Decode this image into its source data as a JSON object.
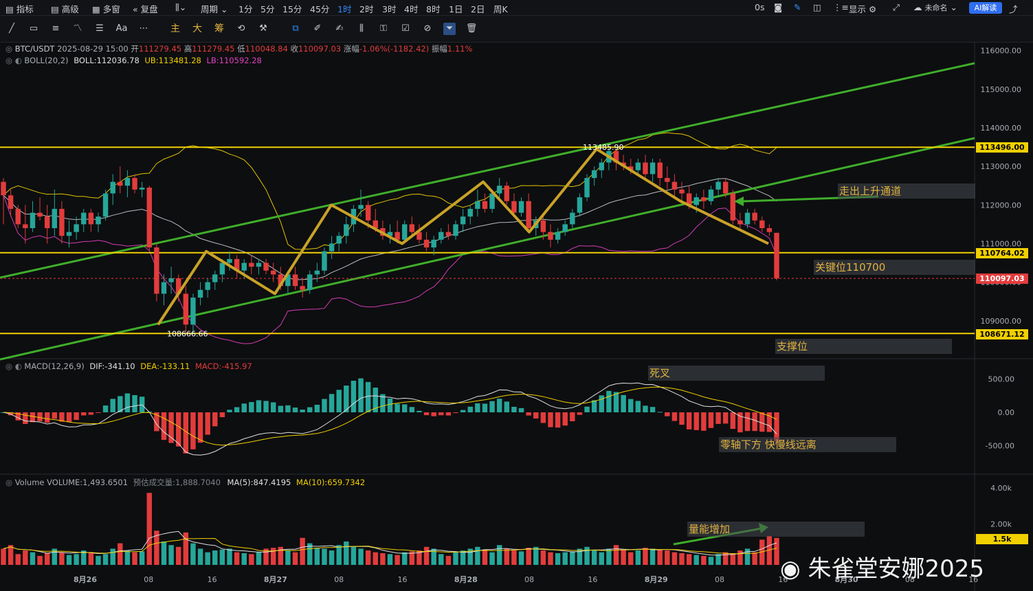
{
  "topbar": {
    "items": [
      "指标",
      "高级",
      "多窗",
      "复盘",
      "周期",
      "1分",
      "5分",
      "15分",
      "45分",
      "1时",
      "2时",
      "3时",
      "4时",
      "8时",
      "1日",
      "2日",
      "周K"
    ],
    "active": "1时",
    "right": {
      "timer": "0s",
      "show": "显示",
      "user": "未命名",
      "ai": "AI解读"
    }
  },
  "toolbar": {
    "gold_labels": [
      "主",
      "大",
      "筹"
    ]
  },
  "header": {
    "symbol": "BTC/USDT",
    "datetime": "2025-08-29 15:00",
    "open_label": "开",
    "open": "111279.45",
    "high_label": "高",
    "high": "111279.45",
    "low_label": "低",
    "low": "110048.84",
    "close_label": "收",
    "close": "110097.03",
    "change_label": "涨幅",
    "change": "-1.06%(-1182.42)",
    "amp_label": "振幅",
    "amp": "1.11%"
  },
  "boll": {
    "name": "BOLL(20,2)",
    "boll": "BOLL:112036.78",
    "ub": "UB:113481.28",
    "lb": "LB:110592.28"
  },
  "macd": {
    "name": "MACD(12,26,9)",
    "dif": "DIF:-341.10",
    "dea": "DEA:-133.11",
    "macd": "MACD:-415.97"
  },
  "volume": {
    "name": "Volume",
    "vol": "VOLUME:1,493.6501",
    "est": "预估成交量:1,888.7040",
    "ma5": "MA(5):847.4195",
    "ma10": "MA(10):659.7342"
  },
  "price_tags": [
    {
      "value": "113496.00",
      "color": "#f0d000",
      "text_color": "#000000"
    },
    {
      "value": "110764.02",
      "color": "#f0d000",
      "text_color": "#000000"
    },
    {
      "value": "110097.03",
      "color": "#e23c3c",
      "text_color": "#ffffff"
    },
    {
      "value": "108671.12",
      "color": "#f0d000",
      "text_color": "#000000"
    }
  ],
  "vol_tag": "1.5k",
  "annotations": {
    "channel_exit": "走出上升通道",
    "key_level": "关键位110700",
    "support": "支撑位",
    "death_cross": "死叉",
    "below_zero": "零轴下方 快慢线远离",
    "volume_up": "量能增加"
  },
  "watermark": "朱雀堂安娜2025",
  "chart_data": {
    "type": "candlestick",
    "symbol": "BTC/USDT",
    "interval": "1时",
    "price_axis": {
      "ticks": [
        109000,
        110000,
        111000,
        112000,
        113000,
        114000,
        115000,
        116000
      ],
      "labels": [
        "109000.00",
        "110000.00",
        "111000.00",
        "112000.00",
        "113000.00",
        "114000.00",
        "115000.00",
        "116000.00"
      ]
    },
    "macd_axis": {
      "ticks": [
        500,
        0,
        -500
      ],
      "labels": [
        "500.00",
        "0.00",
        "-500.00"
      ]
    },
    "volume_axis": {
      "ticks": [
        4000,
        2000
      ],
      "labels": [
        "4.00k",
        "2.00k"
      ]
    },
    "x_labels": [
      "8月26",
      "08",
      "16",
      "8月27",
      "08",
      "16",
      "8月28",
      "08",
      "16",
      "8月29",
      "08",
      "16",
      "8月30",
      "08",
      "16"
    ],
    "horizontal_levels": [
      113496.0,
      110764.02,
      108671.12
    ],
    "last_price": 110097.03,
    "marked_high": {
      "label": "113485.90",
      "value": 113485.9
    },
    "marked_low": {
      "label": "108666.66",
      "value": 108666.66
    },
    "zigzag_pivots": [
      108900,
      110800,
      109700,
      112000,
      111000,
      112600,
      111300,
      113450,
      112100,
      111000
    ],
    "candles": [
      [
        112600,
        112700,
        111500,
        112250
      ],
      [
        112250,
        112400,
        111700,
        111900
      ],
      [
        111900,
        112000,
        111400,
        111500
      ],
      [
        111500,
        112000,
        111000,
        111400
      ],
      [
        111400,
        112100,
        111300,
        111800
      ],
      [
        111800,
        112200,
        111600,
        111700
      ],
      [
        111700,
        112000,
        111000,
        111400
      ],
      [
        111400,
        112400,
        111200,
        111900
      ],
      [
        111900,
        112100,
        111000,
        111200
      ],
      [
        111200,
        111600,
        110900,
        111300
      ],
      [
        111300,
        111700,
        111100,
        111500
      ],
      [
        111500,
        111900,
        111300,
        111800
      ],
      [
        111800,
        111900,
        111300,
        111500
      ],
      [
        111500,
        111800,
        111300,
        111700
      ],
      [
        111700,
        112400,
        111600,
        112300
      ],
      [
        112300,
        112800,
        112000,
        112600
      ],
      [
        112600,
        113000,
        112300,
        112500
      ],
      [
        112500,
        112900,
        112200,
        112700
      ],
      [
        112700,
        112800,
        112300,
        112400
      ],
      [
        112400,
        112600,
        112200,
        112450
      ],
      [
        112450,
        112500,
        110800,
        110900
      ],
      [
        110900,
        111000,
        109500,
        109700
      ],
      [
        109700,
        110200,
        109400,
        110000
      ],
      [
        110000,
        110400,
        109700,
        110100
      ],
      [
        110100,
        110200,
        109500,
        109700
      ],
      [
        109700,
        109900,
        108700,
        108900
      ],
      [
        108900,
        109700,
        108667,
        109600
      ],
      [
        109600,
        110000,
        109400,
        109800
      ],
      [
        109800,
        110100,
        109600,
        110000
      ],
      [
        110000,
        110300,
        109800,
        110200
      ],
      [
        110200,
        110600,
        110000,
        110500
      ],
      [
        110500,
        110800,
        110300,
        110600
      ],
      [
        110600,
        110700,
        110100,
        110300
      ],
      [
        110300,
        110600,
        110100,
        110500
      ],
      [
        110500,
        110700,
        110200,
        110400
      ],
      [
        110400,
        110600,
        110200,
        110500
      ],
      [
        110500,
        110600,
        110200,
        110300
      ],
      [
        110300,
        110500,
        110000,
        110200
      ],
      [
        110200,
        110400,
        109800,
        109900
      ],
      [
        109900,
        110300,
        109700,
        110200
      ],
      [
        110200,
        110400,
        109800,
        109900
      ],
      [
        109900,
        110100,
        109600,
        109800
      ],
      [
        109800,
        110300,
        109700,
        110200
      ],
      [
        110200,
        110500,
        110000,
        110300
      ],
      [
        110300,
        110900,
        110200,
        110800
      ],
      [
        110800,
        111200,
        110600,
        111000
      ],
      [
        111000,
        111300,
        110800,
        111200
      ],
      [
        111200,
        111700,
        111000,
        111500
      ],
      [
        111500,
        112000,
        111300,
        111900
      ],
      [
        111900,
        112400,
        111700,
        112000
      ],
      [
        112000,
        112100,
        111400,
        111600
      ],
      [
        111600,
        111900,
        111300,
        111400
      ],
      [
        111400,
        111600,
        111100,
        111200
      ],
      [
        111200,
        111500,
        111000,
        111300
      ],
      [
        111300,
        111600,
        111000,
        111100
      ],
      [
        111100,
        111600,
        111000,
        111500
      ],
      [
        111500,
        111700,
        111200,
        111300
      ],
      [
        111300,
        111500,
        111000,
        111100
      ],
      [
        111100,
        111300,
        110800,
        110900
      ],
      [
        110900,
        111200,
        110700,
        111100
      ],
      [
        111100,
        111400,
        111000,
        111300
      ],
      [
        111300,
        111500,
        111100,
        111200
      ],
      [
        111200,
        111600,
        111100,
        111500
      ],
      [
        111500,
        111900,
        111300,
        111700
      ],
      [
        111700,
        112000,
        111500,
        111900
      ],
      [
        111900,
        112400,
        111700,
        112100
      ],
      [
        112100,
        112300,
        111800,
        111900
      ],
      [
        111900,
        112400,
        111800,
        112300
      ],
      [
        112300,
        112700,
        112100,
        112500
      ],
      [
        112500,
        112600,
        112000,
        112100
      ],
      [
        112100,
        112300,
        111700,
        111800
      ],
      [
        111800,
        112200,
        111700,
        112100
      ],
      [
        112100,
        112300,
        111300,
        111400
      ],
      [
        111400,
        111700,
        111200,
        111600
      ],
      [
        111600,
        111700,
        111100,
        111300
      ],
      [
        111300,
        111500,
        110900,
        111100
      ],
      [
        111100,
        111400,
        111000,
        111300
      ],
      [
        111300,
        111600,
        111200,
        111500
      ],
      [
        111500,
        111900,
        111400,
        111800
      ],
      [
        111800,
        112300,
        111700,
        112200
      ],
      [
        112200,
        112800,
        112100,
        112700
      ],
      [
        112700,
        113000,
        112500,
        112900
      ],
      [
        112900,
        113200,
        112700,
        113100
      ],
      [
        113100,
        113486,
        112900,
        113400
      ],
      [
        113400,
        113450,
        112900,
        113100
      ],
      [
        113100,
        113300,
        112900,
        113000
      ],
      [
        113000,
        113200,
        112800,
        112900
      ],
      [
        112900,
        113200,
        112800,
        113100
      ],
      [
        113100,
        113300,
        112700,
        112800
      ],
      [
        112800,
        113200,
        112600,
        113100
      ],
      [
        113100,
        113200,
        112500,
        112700
      ],
      [
        112700,
        113000,
        112400,
        112600
      ],
      [
        112600,
        112800,
        112200,
        112400
      ],
      [
        112400,
        112600,
        112100,
        112300
      ],
      [
        112300,
        112500,
        111900,
        112000
      ],
      [
        112000,
        112300,
        111800,
        112200
      ],
      [
        112200,
        112400,
        111900,
        112100
      ],
      [
        112100,
        112500,
        112000,
        112400
      ],
      [
        112400,
        112700,
        112200,
        112600
      ],
      [
        112600,
        112700,
        112200,
        112300
      ],
      [
        112300,
        112400,
        111500,
        111600
      ],
      [
        111600,
        111800,
        111400,
        111500
      ],
      [
        111500,
        111900,
        111400,
        111800
      ],
      [
        111800,
        111900,
        111500,
        111600
      ],
      [
        111600,
        111700,
        111300,
        111400
      ],
      [
        111400,
        111500,
        111200,
        111300
      ],
      [
        111279,
        111279,
        110049,
        110097
      ]
    ],
    "volume": [
      900,
      1100,
      600,
      800,
      700,
      500,
      650,
      900,
      700,
      550,
      600,
      800,
      700,
      500,
      600,
      900,
      1200,
      800,
      700,
      750,
      4000,
      1900,
      1300,
      1100,
      1000,
      1800,
      1200,
      900,
      700,
      800,
      850,
      900,
      700,
      650,
      600,
      700,
      900,
      950,
      1000,
      800,
      700,
      1500,
      1200,
      950,
      900,
      800,
      1100,
      1300,
      1000,
      900,
      800,
      700,
      650,
      600,
      550,
      700,
      750,
      800,
      1000,
      900,
      600,
      500,
      700,
      800,
      900,
      1000,
      850,
      700,
      1100,
      900,
      800,
      750,
      950,
      1000,
      800,
      700,
      650,
      700,
      750,
      900,
      1000,
      800,
      700,
      900,
      1100,
      850,
      700,
      800,
      950,
      900,
      850,
      800,
      700,
      650,
      600,
      550,
      500,
      450,
      600,
      700,
      650,
      800,
      900,
      700,
      1400,
      1600,
      1500
    ]
  }
}
